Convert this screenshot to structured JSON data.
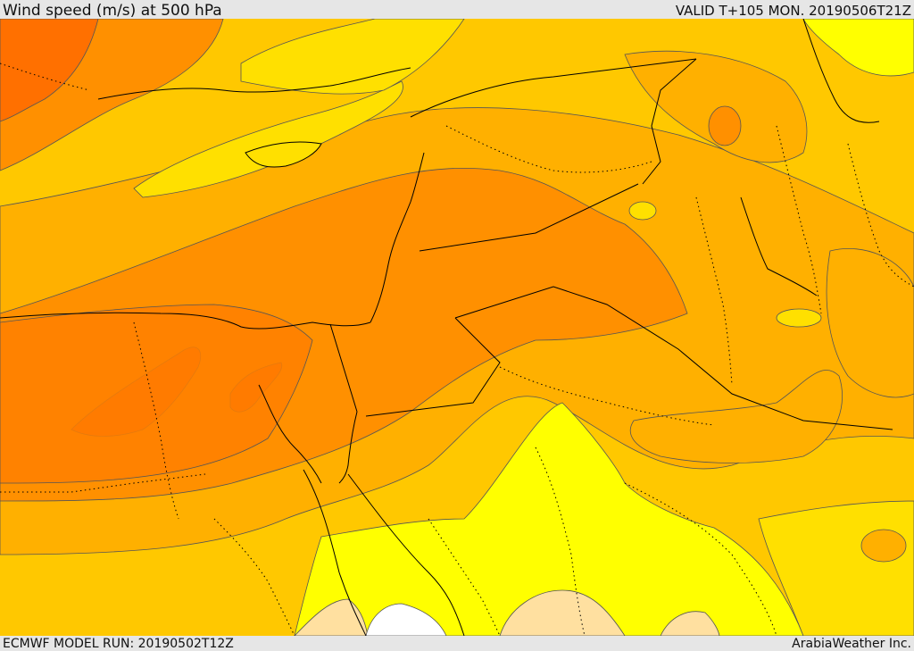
{
  "header": {
    "title": "Wind speed (m/s) at 500 hPa",
    "valid_time": "VALID T+105 MON. 20190506T21Z"
  },
  "footer": {
    "model_run": "ECMWF MODEL RUN: 20190502T12Z",
    "credit": "ArabiaWeather Inc."
  },
  "map": {
    "colors": {
      "very_light": "#ffffff",
      "light_tan": "#ffe0a0",
      "yellow": "#ffff00",
      "light_orange": "#ffe000",
      "yellow_orange": "#ffc800",
      "orange": "#ffb000",
      "deep_orange": "#ff9000",
      "dark_orange": "#ff7800",
      "red_orange": "#ff6000",
      "contour": "#555555",
      "border": "#000000"
    }
  }
}
